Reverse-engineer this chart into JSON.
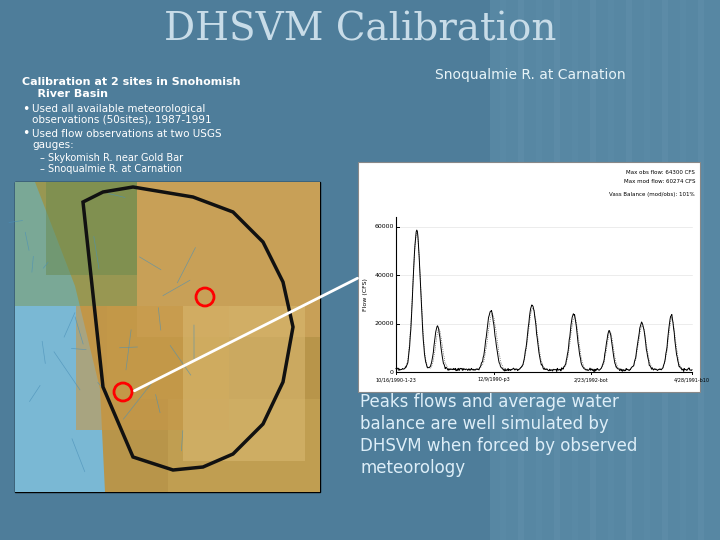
{
  "title": "DHSVM Calibration",
  "title_color": "#c8dce8",
  "title_fontsize": 28,
  "bg_color": "#4e7d9a",
  "left_heading_line1": "Calibration at 2 sites in Snohomish",
  "left_heading_line2": "    River Basin",
  "bullet1_line1": "Used all available meteorological",
  "bullet1_line2": "observations (50sites), 1987-1991",
  "bullet2_line1": "Used flow observations at two USGS",
  "bullet2_line2": "gauges:",
  "sub1": "Skykomish R. near Gold Bar",
  "sub2": "Snoqualmie R. at Carnation",
  "right_label": "Snoqualmie R. at Carnation",
  "bottom_text_line1": "Peaks flows and average water",
  "bottom_text_line2": "balance are well simulated by",
  "bottom_text_line3": "DHSVM when forced by observed",
  "bottom_text_line4": "meteorology",
  "text_color": "#ffffff",
  "bottom_text_color": "#ddeef8",
  "right_label_color": "#e8f4f8",
  "hydro_legend1": "Max obs flow: 64300 CFS",
  "hydro_legend2": "Max mod flow: 60274 CFS",
  "hydro_legend3": "Vass Balance (mod/obs): 101%",
  "hydro_xlabel1": "10/16/1990-1-23",
  "hydro_xlabel2": "12/9/1990-p3",
  "hydro_xlabel3": "2/23/1992-bot",
  "hydro_xlabel4": "4/28/1991-b10",
  "hydro_ylabel": "Flow (CFS)"
}
